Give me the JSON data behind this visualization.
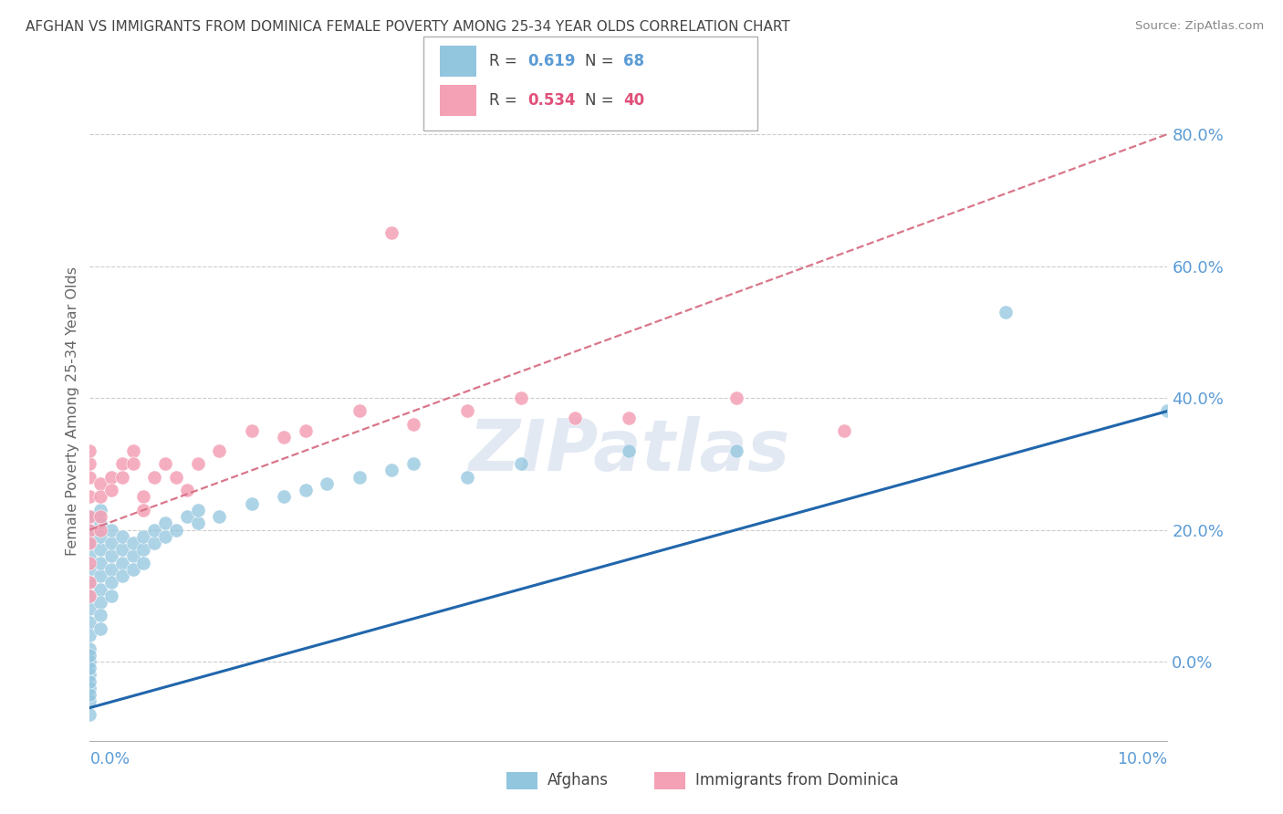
{
  "title": "AFGHAN VS IMMIGRANTS FROM DOMINICA FEMALE POVERTY AMONG 25-34 YEAR OLDS CORRELATION CHART",
  "source": "Source: ZipAtlas.com",
  "ylabel": "Female Poverty Among 25-34 Year Olds",
  "y_ticks": [
    0.0,
    0.2,
    0.4,
    0.6,
    0.8
  ],
  "y_tick_labels": [
    "0.0%",
    "20.0%",
    "40.0%",
    "60.0%",
    "80.0%"
  ],
  "x_lim": [
    0.0,
    0.1
  ],
  "y_lim": [
    -0.12,
    0.88
  ],
  "afghan_color": "#92c5de",
  "dominica_color": "#f4a0b5",
  "afghan_line_color": "#2166ac",
  "dominica_line_color": "#d9768a",
  "background_color": "#ffffff",
  "grid_color": "#cccccc",
  "title_color": "#444444",
  "axis_label_color": "#5b9bd5",
  "R1": "0.619",
  "N1": "68",
  "R2": "0.534",
  "N2": "40",
  "watermark_color": "#ccd8ea",
  "af_x": [
    0.0,
    0.0,
    0.0,
    0.0,
    0.0,
    0.0,
    0.0,
    0.0,
    0.0,
    0.0,
    0.0,
    0.0,
    0.0,
    0.0,
    0.0,
    0.0,
    0.0,
    0.0,
    0.0,
    0.0,
    0.001,
    0.001,
    0.001,
    0.001,
    0.001,
    0.001,
    0.001,
    0.001,
    0.001,
    0.001,
    0.002,
    0.002,
    0.002,
    0.002,
    0.002,
    0.002,
    0.003,
    0.003,
    0.003,
    0.003,
    0.004,
    0.004,
    0.004,
    0.005,
    0.005,
    0.005,
    0.006,
    0.006,
    0.007,
    0.007,
    0.008,
    0.009,
    0.01,
    0.01,
    0.012,
    0.015,
    0.018,
    0.02,
    0.022,
    0.025,
    0.028,
    0.03,
    0.035,
    0.04,
    0.05,
    0.06,
    0.085,
    0.1
  ],
  "af_y": [
    0.14,
    0.12,
    0.1,
    0.08,
    0.06,
    0.04,
    0.02,
    0.0,
    -0.02,
    -0.04,
    -0.06,
    -0.08,
    -0.05,
    -0.03,
    -0.01,
    0.01,
    0.16,
    0.18,
    0.2,
    0.22,
    0.13,
    0.11,
    0.09,
    0.07,
    0.05,
    0.15,
    0.17,
    0.19,
    0.21,
    0.23,
    0.14,
    0.12,
    0.1,
    0.16,
    0.18,
    0.2,
    0.15,
    0.13,
    0.17,
    0.19,
    0.16,
    0.14,
    0.18,
    0.17,
    0.15,
    0.19,
    0.18,
    0.2,
    0.19,
    0.21,
    0.2,
    0.22,
    0.21,
    0.23,
    0.22,
    0.24,
    0.25,
    0.26,
    0.27,
    0.28,
    0.29,
    0.3,
    0.28,
    0.3,
    0.32,
    0.32,
    0.53,
    0.38
  ],
  "dom_x": [
    0.0,
    0.0,
    0.0,
    0.0,
    0.0,
    0.0,
    0.0,
    0.0,
    0.0,
    0.0,
    0.001,
    0.001,
    0.001,
    0.001,
    0.002,
    0.002,
    0.003,
    0.003,
    0.004,
    0.004,
    0.005,
    0.005,
    0.006,
    0.007,
    0.008,
    0.009,
    0.01,
    0.012,
    0.015,
    0.018,
    0.02,
    0.025,
    0.028,
    0.03,
    0.035,
    0.04,
    0.045,
    0.05,
    0.06,
    0.07
  ],
  "dom_y": [
    0.25,
    0.22,
    0.2,
    0.18,
    0.15,
    0.28,
    0.3,
    0.32,
    0.12,
    0.1,
    0.27,
    0.25,
    0.22,
    0.2,
    0.28,
    0.26,
    0.3,
    0.28,
    0.32,
    0.3,
    0.25,
    0.23,
    0.28,
    0.3,
    0.28,
    0.26,
    0.3,
    0.32,
    0.35,
    0.34,
    0.35,
    0.38,
    0.65,
    0.36,
    0.38,
    0.4,
    0.37,
    0.37,
    0.4,
    0.35
  ],
  "af_line_x": [
    0.0,
    0.1
  ],
  "af_line_y": [
    -0.07,
    0.38
  ],
  "dom_line_x": [
    0.0,
    0.1
  ],
  "dom_line_y": [
    0.2,
    0.8
  ]
}
